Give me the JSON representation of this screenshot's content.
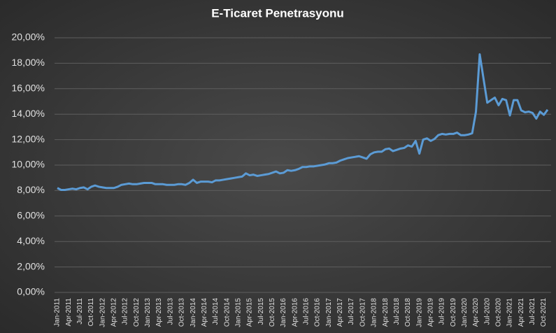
{
  "chart_data": {
    "type": "line",
    "title": "E-Ticaret Penetrasyonu",
    "categories": [
      "Jan-2011",
      null,
      null,
      "Apr-2011",
      null,
      null,
      "Jul-2011",
      null,
      null,
      "Oct-2011",
      null,
      null,
      "Jan-2012",
      null,
      null,
      "Apr-2012",
      null,
      null,
      "Jul-2012",
      null,
      null,
      "Oct-2012",
      null,
      null,
      "Jan-2013",
      null,
      null,
      "Apr-2013",
      null,
      null,
      "Jul-2013",
      null,
      null,
      "Oct-2013",
      null,
      null,
      "Jan-2014",
      null,
      null,
      "Apr-2014",
      null,
      null,
      "Jul-2014",
      null,
      null,
      "Oct-2014",
      null,
      null,
      "Jan-2015",
      null,
      null,
      "Apr-2015",
      null,
      null,
      "Jul-2015",
      null,
      null,
      "Oct-2015",
      null,
      null,
      "Jan-2016",
      null,
      null,
      "Apr-2016",
      null,
      null,
      "Jul-2016",
      null,
      null,
      "Oct-2016",
      null,
      null,
      "Jan-2017",
      null,
      null,
      "Apr-2017",
      null,
      null,
      "Jul-2017",
      null,
      null,
      "Oct-2017",
      null,
      null,
      "Jan-2018",
      null,
      null,
      "Apr-2018",
      null,
      null,
      "Jul-2018",
      null,
      null,
      "Oct-2018",
      null,
      null,
      "Jan-2019",
      null,
      null,
      "Apr-2019",
      null,
      null,
      "Jul-2019",
      null,
      null,
      "Oct-2019",
      null,
      null,
      "Jan-2020",
      null,
      null,
      "Apr-2020",
      null,
      null,
      "Jul-2020",
      null,
      null,
      "Oct-2020",
      null,
      null,
      "Jan-2021",
      null,
      null,
      "Apr-2021",
      null,
      null,
      "Jul-2021",
      null,
      null,
      "Oct-2021",
      null
    ],
    "values": [
      8.2,
      8.05,
      8.05,
      8.1,
      8.15,
      8.1,
      8.2,
      8.25,
      8.1,
      8.3,
      8.4,
      8.3,
      8.25,
      8.2,
      8.2,
      8.2,
      8.3,
      8.45,
      8.5,
      8.55,
      8.5,
      8.5,
      8.55,
      8.6,
      8.6,
      8.6,
      8.5,
      8.5,
      8.5,
      8.45,
      8.45,
      8.45,
      8.5,
      8.5,
      8.45,
      8.6,
      8.85,
      8.6,
      8.7,
      8.7,
      8.7,
      8.65,
      8.8,
      8.8,
      8.85,
      8.9,
      8.95,
      9.0,
      9.05,
      9.1,
      9.35,
      9.2,
      9.25,
      9.15,
      9.2,
      9.25,
      9.3,
      9.4,
      9.5,
      9.35,
      9.4,
      9.6,
      9.55,
      9.6,
      9.7,
      9.85,
      9.85,
      9.9,
      9.9,
      9.95,
      10.0,
      10.05,
      10.15,
      10.15,
      10.2,
      10.35,
      10.45,
      10.55,
      10.6,
      10.65,
      10.7,
      10.6,
      10.5,
      10.85,
      11.0,
      11.05,
      11.05,
      11.25,
      11.3,
      11.1,
      11.2,
      11.3,
      11.35,
      11.55,
      11.45,
      11.9,
      10.9,
      12.0,
      12.1,
      11.9,
      12.05,
      12.35,
      12.45,
      12.4,
      12.45,
      12.45,
      12.55,
      12.35,
      12.35,
      12.4,
      12.5,
      14.2,
      18.7,
      16.8,
      14.9,
      15.1,
      15.3,
      14.7,
      15.2,
      15.1,
      13.9,
      15.1,
      15.1,
      14.3,
      14.15,
      14.2,
      14.1,
      13.65,
      14.2,
      13.95,
      14.35
    ],
    "color": "#5b9bd5",
    "ylim": [
      0,
      20
    ],
    "yticks": [
      {
        "value": 0,
        "label": "0,00%"
      },
      {
        "value": 2,
        "label": "2,00%"
      },
      {
        "value": 4,
        "label": "4,00%"
      },
      {
        "value": 6,
        "label": "6,00%"
      },
      {
        "value": 8,
        "label": "8,00%"
      },
      {
        "value": 10,
        "label": "10,00%"
      },
      {
        "value": 12,
        "label": "12,00%"
      },
      {
        "value": 14,
        "label": "14,00%"
      },
      {
        "value": 16,
        "label": "16,00%"
      },
      {
        "value": 18,
        "label": "18,00%"
      },
      {
        "value": 20,
        "label": "20,00%"
      }
    ],
    "grid": true
  }
}
